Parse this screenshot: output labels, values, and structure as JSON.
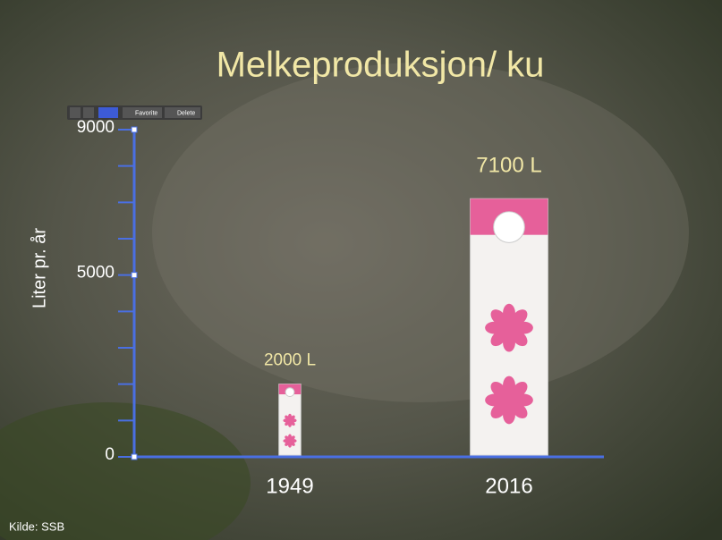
{
  "toolbar": [
    "Favorite",
    "Delete"
  ],
  "chart_data": {
    "type": "bar",
    "title": "Melkeproduksjon/ ku",
    "ylabel": "Liter pr. år",
    "source": "Kilde: SSB",
    "categories": [
      "1949",
      "2016"
    ],
    "values": [
      2000,
      7100
    ],
    "value_labels": [
      "2000 L",
      "7100 L"
    ],
    "ylim": [
      0,
      9000
    ],
    "yticks": [
      0,
      5000,
      9000
    ],
    "yminor_ticks": [
      1000,
      2000,
      3000,
      4000,
      6000,
      7000,
      8000
    ],
    "axis_color": "#4a6fe3",
    "color": "#f4f2f0"
  }
}
